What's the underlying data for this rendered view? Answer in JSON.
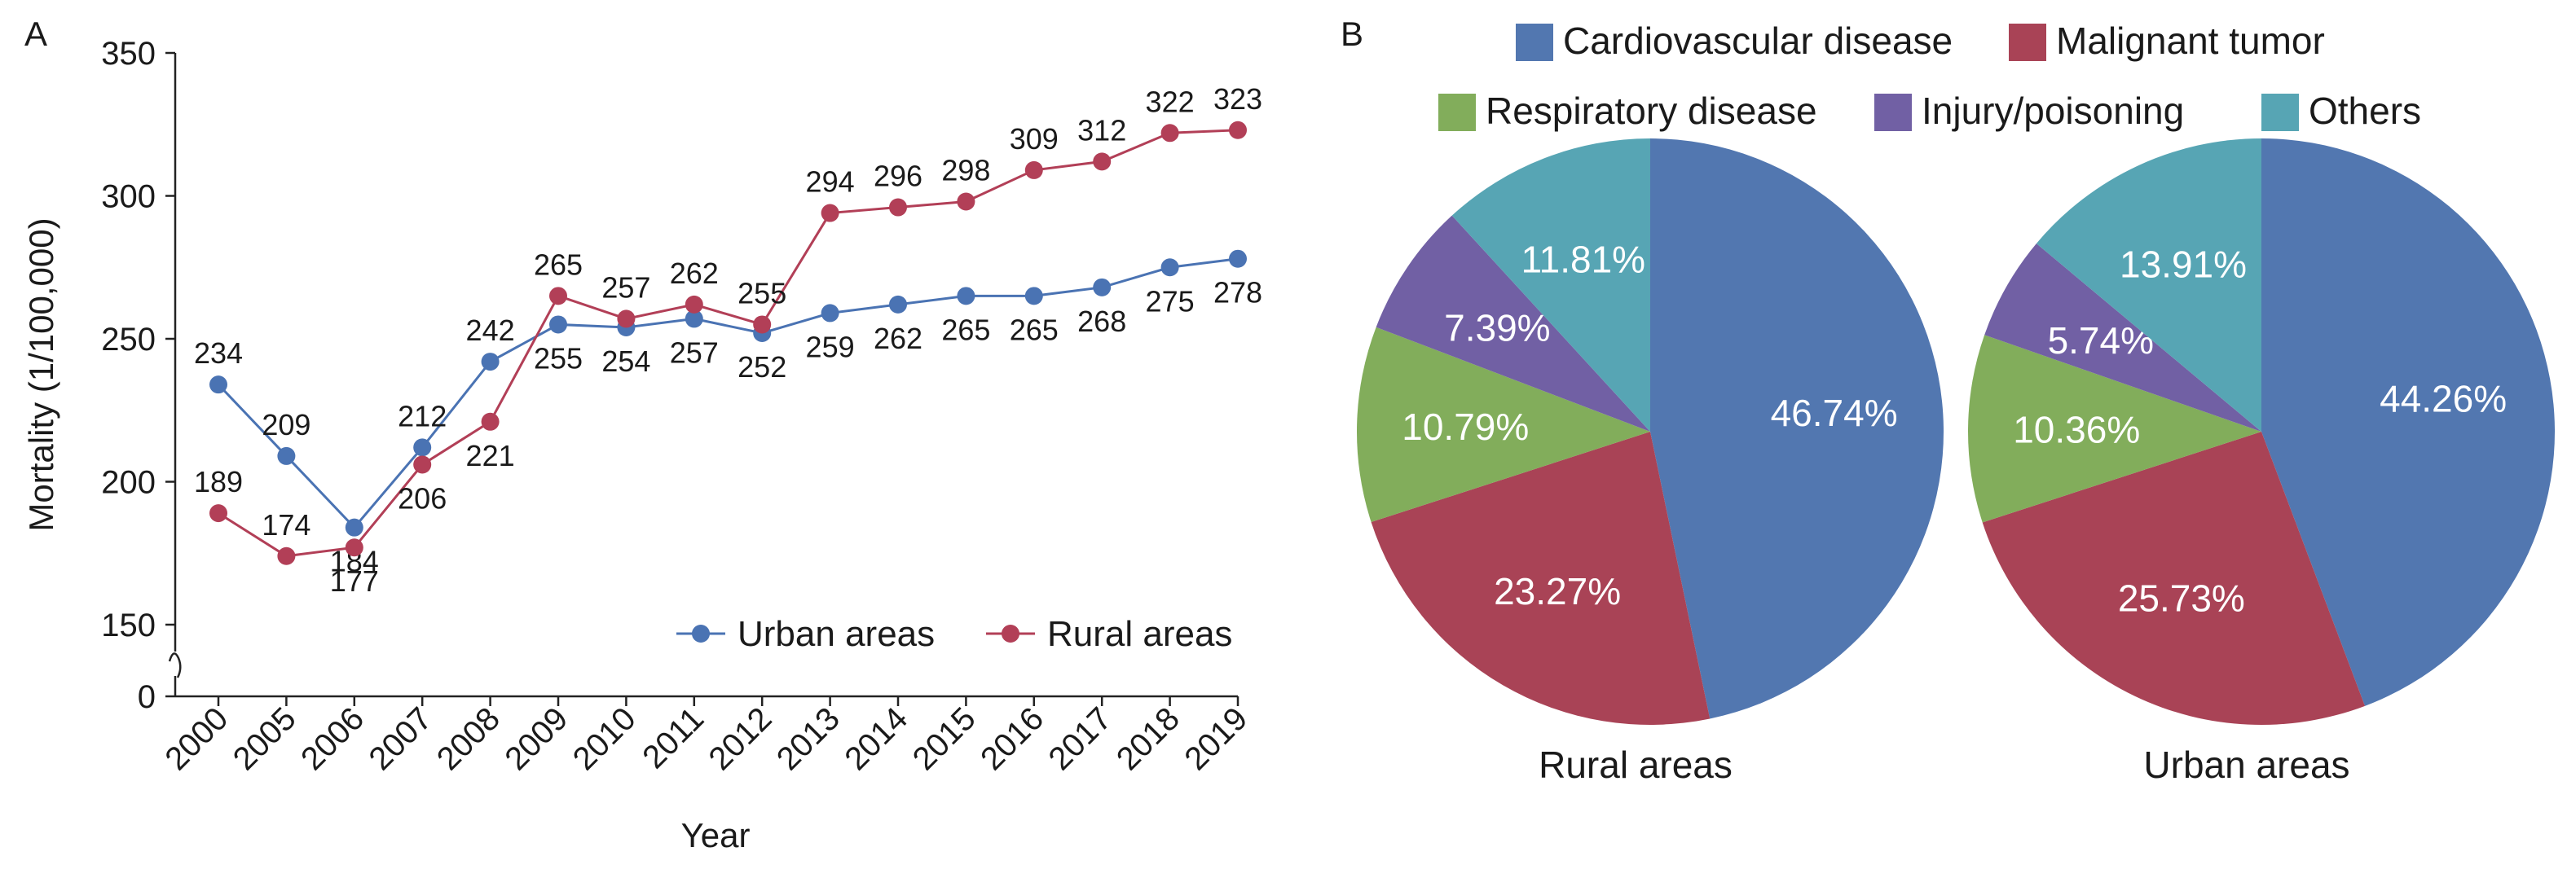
{
  "colors": {
    "urban": "#4a73b3",
    "rural": "#b23f57",
    "cardio": "#5277b0",
    "tumor": "#a94356",
    "resp": "#82ad5b",
    "injury": "#7160a4",
    "others": "#57a5b4"
  },
  "panel_a": {
    "letter": "A"
  },
  "panel_b": {
    "letter": "B"
  },
  "chart_data": [
    {
      "type": "line",
      "x": [
        "2000",
        "2005",
        "2006",
        "2007",
        "2008",
        "2009",
        "2010",
        "2011",
        "2012",
        "2013",
        "2014",
        "2015",
        "2016",
        "2017",
        "2018",
        "2019"
      ],
      "xlabel": "Year",
      "ylabel": "Mortality (1/100,000)",
      "yticks": [
        0,
        150,
        200,
        250,
        300,
        350
      ],
      "ylim": [
        150,
        350
      ],
      "axis_break": true,
      "legend_position": "bottom-right",
      "series": [
        {
          "name": "Urban areas",
          "color_key": "urban",
          "values": [
            234,
            209,
            184,
            212,
            242,
            255,
            254,
            257,
            252,
            259,
            262,
            265,
            265,
            268,
            275,
            278
          ],
          "labels": [
            "234",
            "209",
            "184",
            "212",
            "242",
            "255",
            "254",
            "257",
            "252",
            "259",
            "262",
            "265",
            "265",
            "268",
            "275",
            "278"
          ]
        },
        {
          "name": "Rural areas",
          "color_key": "rural",
          "values": [
            189,
            174,
            177,
            206,
            221,
            265,
            257,
            262,
            255,
            294,
            296,
            298,
            309,
            312,
            322,
            323
          ],
          "labels": [
            "189",
            "174",
            "177",
            "206",
            "221",
            "265",
            "257",
            "262",
            "255",
            "294",
            "296",
            "298",
            "309",
            "312",
            "322",
            "323"
          ]
        }
      ]
    },
    {
      "type": "pie",
      "legend": [
        {
          "label": "Cardiovascular disease",
          "color_key": "cardio"
        },
        {
          "label": "Malignant tumor",
          "color_key": "tumor"
        },
        {
          "label": "Respiratory disease",
          "color_key": "resp"
        },
        {
          "label": "Injury/poisoning",
          "color_key": "injury"
        },
        {
          "label": "Others",
          "color_key": "others"
        }
      ],
      "legend_position": "top",
      "pies": [
        {
          "title": "Rural areas",
          "slices": [
            {
              "category": "Cardiovascular disease",
              "value": 46.74,
              "label": "46.74%"
            },
            {
              "category": "Malignant tumor",
              "value": 23.27,
              "label": "23.27%"
            },
            {
              "category": "Respiratory disease",
              "value": 10.79,
              "label": "10.79%"
            },
            {
              "category": "Injury/poisoning",
              "value": 7.39,
              "label": "7.39%"
            },
            {
              "category": "Others",
              "value": 11.81,
              "label": "11.81%"
            }
          ]
        },
        {
          "title": "Urban areas",
          "slices": [
            {
              "category": "Cardiovascular disease",
              "value": 44.26,
              "label": "44.26%"
            },
            {
              "category": "Malignant tumor",
              "value": 25.73,
              "label": "25.73%"
            },
            {
              "category": "Respiratory disease",
              "value": 10.36,
              "label": "10.36%"
            },
            {
              "category": "Injury/poisoning",
              "value": 5.74,
              "label": "5.74%"
            },
            {
              "category": "Others",
              "value": 13.91,
              "label": "13.91%"
            }
          ]
        }
      ]
    }
  ]
}
